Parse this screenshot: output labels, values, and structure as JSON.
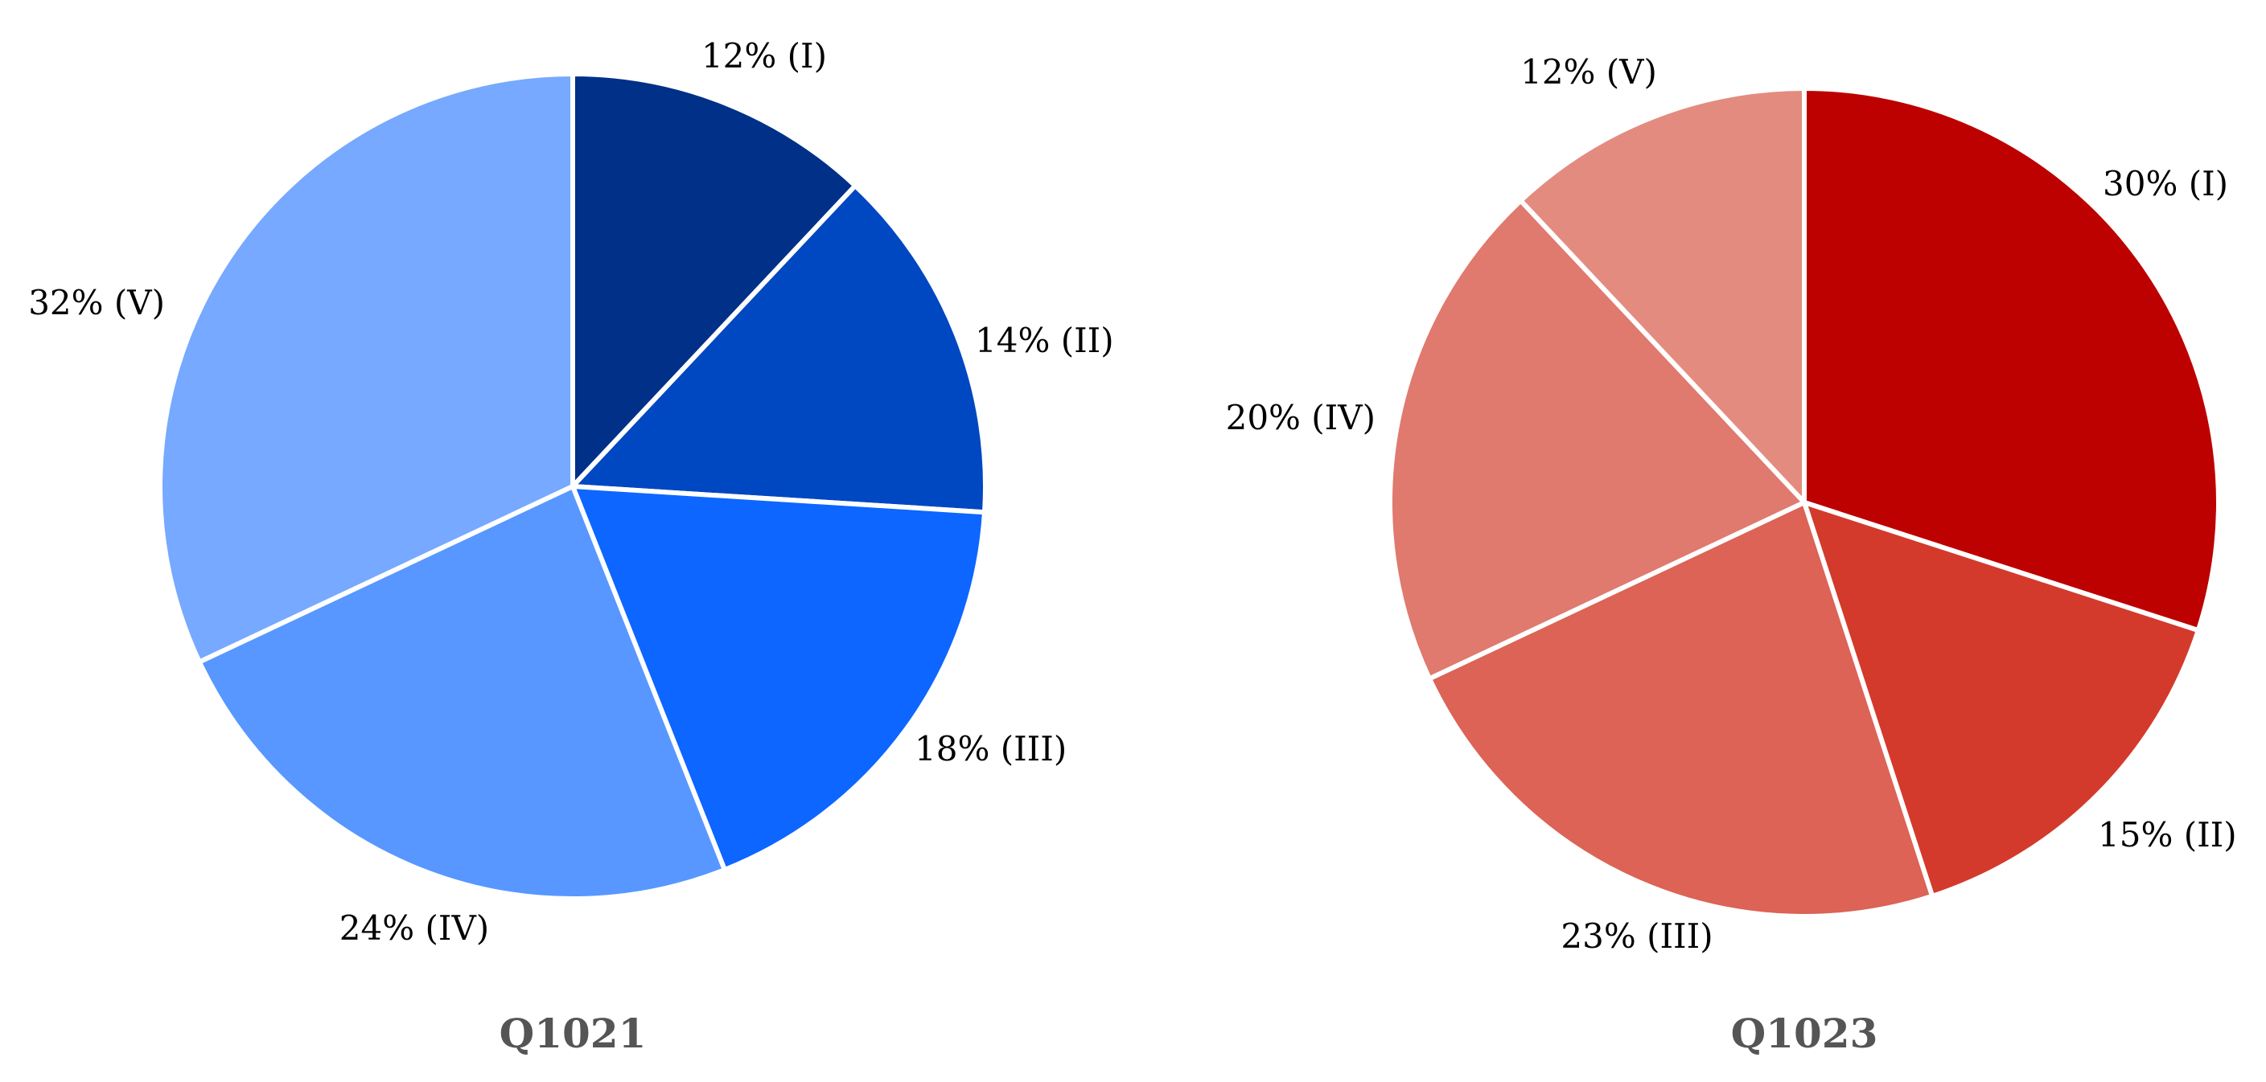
{
  "chart_data": [
    {
      "type": "pie",
      "title": "Q1021",
      "slices": [
        {
          "label": "I",
          "value": 12,
          "text": "12% (I)",
          "color": "#003087"
        },
        {
          "label": "II",
          "value": 14,
          "text": "14% (II)",
          "color": "#0047C2"
        },
        {
          "label": "III",
          "value": 18,
          "text": "18% (III)",
          "color": "#0D66FF"
        },
        {
          "label": "IV",
          "value": 24,
          "text": "24% (IV)",
          "color": "#5797FF"
        },
        {
          "label": "V",
          "value": 32,
          "text": "32% (V)",
          "color": "#76A9FF"
        }
      ]
    },
    {
      "type": "pie",
      "title": "Q1023",
      "slices": [
        {
          "label": "I",
          "value": 30,
          "text": "30% (I)",
          "color": "#BD0000"
        },
        {
          "label": "II",
          "value": 15,
          "text": "15% (II)",
          "color": "#D33A2C"
        },
        {
          "label": "III",
          "value": 23,
          "text": "23% (III)",
          "color": "#DC6355"
        },
        {
          "label": "IV",
          "value": 20,
          "text": "20% (IV)",
          "color": "#E0796E"
        },
        {
          "label": "V",
          "value": 12,
          "text": "12% (V)",
          "color": "#E48B80"
        }
      ]
    }
  ]
}
